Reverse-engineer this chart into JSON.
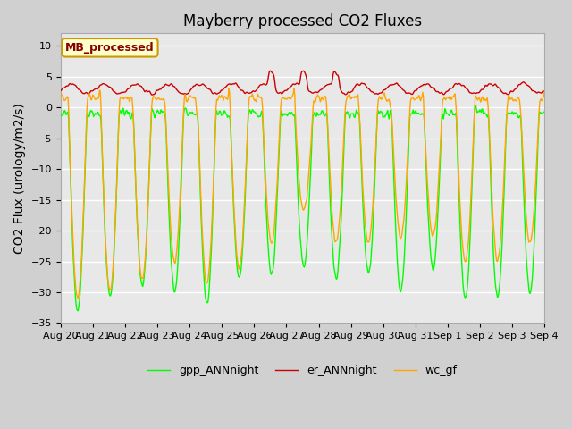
{
  "title": "Mayberry processed CO2 Fluxes",
  "ylabel": "CO2 Flux (urology/m2/s)",
  "ylim": [
    -35,
    12
  ],
  "yticks": [
    -35,
    -30,
    -25,
    -20,
    -15,
    -10,
    -5,
    0,
    5,
    10
  ],
  "fig_bg_color": "#d0d0d0",
  "plot_bg_color": "#e8e8e8",
  "grid_color": "#ffffff",
  "line_colors": {
    "gpp": "#00ff00",
    "er": "#cc0000",
    "wc": "#ffa500"
  },
  "legend_labels": [
    "gpp_ANNnight",
    "er_ANNnight",
    "wc_gf"
  ],
  "annotation_text": "MB_processed",
  "annotation_bg": "#ffffcc",
  "annotation_border": "#cc9900",
  "annotation_text_color": "#880000",
  "n_days": 15,
  "points_per_day": 48,
  "x_tick_labels": [
    "Aug 20",
    "Aug 21",
    "Aug 22",
    "Aug 23",
    "Aug 24",
    "Aug 25",
    "Aug 26",
    "Aug 27",
    "Aug 28",
    "Aug 29",
    "Aug 30",
    "Aug 31",
    "Sep 1",
    "Sep 2",
    "Sep 3",
    "Sep 4"
  ],
  "title_fontsize": 12,
  "axis_label_fontsize": 10,
  "tick_fontsize": 8,
  "legend_fontsize": 9,
  "linewidth": 1.0
}
